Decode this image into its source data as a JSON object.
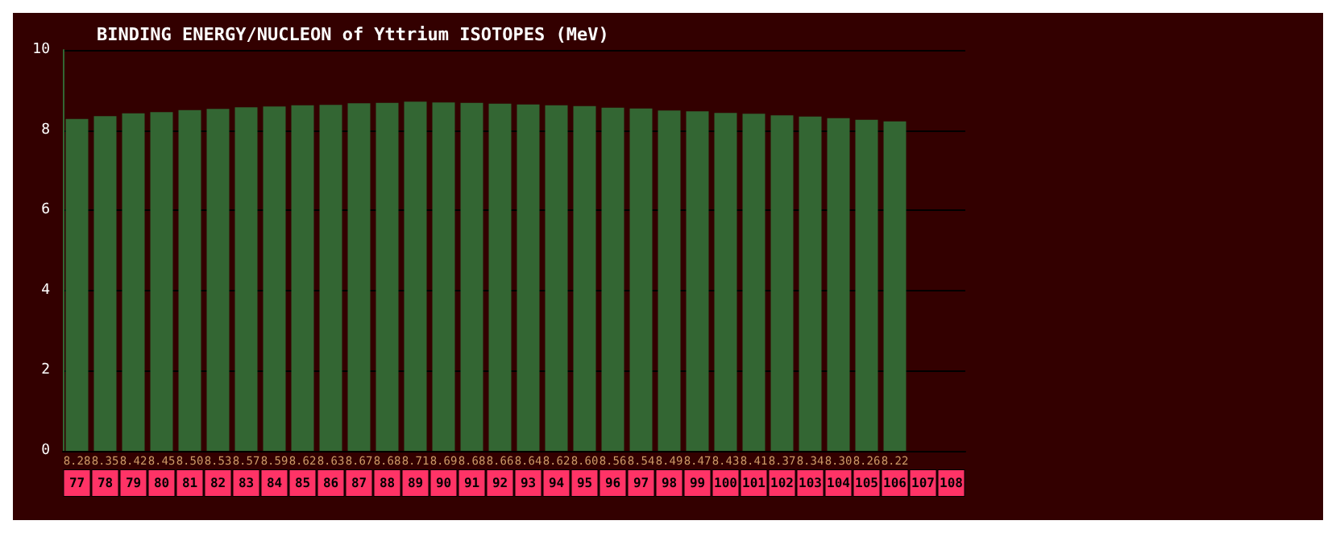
{
  "chart_data": {
    "type": "bar",
    "title": "BINDING ENERGY/NUCLEON of Yttrium ISOTOPES (MeV)",
    "categories": [
      "77",
      "78",
      "79",
      "80",
      "81",
      "82",
      "83",
      "84",
      "85",
      "86",
      "87",
      "88",
      "89",
      "90",
      "91",
      "92",
      "93",
      "94",
      "95",
      "96",
      "97",
      "98",
      "99",
      "100",
      "101",
      "102",
      "103",
      "104",
      "105",
      "106",
      "107",
      "108"
    ],
    "values": [
      8.28,
      8.35,
      8.42,
      8.45,
      8.5,
      8.53,
      8.57,
      8.59,
      8.62,
      8.63,
      8.67,
      8.68,
      8.71,
      8.69,
      8.68,
      8.66,
      8.64,
      8.62,
      8.6,
      8.56,
      8.54,
      8.49,
      8.47,
      8.43,
      8.41,
      8.37,
      8.34,
      8.3,
      8.26,
      8.22,
      null,
      null
    ],
    "value_labels": [
      "8.28",
      "8.35",
      "8.42",
      "8.45",
      "8.50",
      "8.53",
      "8.57",
      "8.59",
      "8.62",
      "8.63",
      "8.67",
      "8.68",
      "8.71",
      "8.69",
      "8.68",
      "8.66",
      "8.64",
      "8.62",
      "8.60",
      "8.56",
      "8.54",
      "8.49",
      "8.47",
      "8.43",
      "8.41",
      "8.37",
      "8.34",
      "8.30",
      "8.26",
      "8.22",
      null,
      null
    ],
    "color": "#336633",
    "ylim": [
      0,
      10
    ],
    "yticks": [
      0,
      2,
      4,
      6,
      8,
      10
    ],
    "grid": "y"
  }
}
